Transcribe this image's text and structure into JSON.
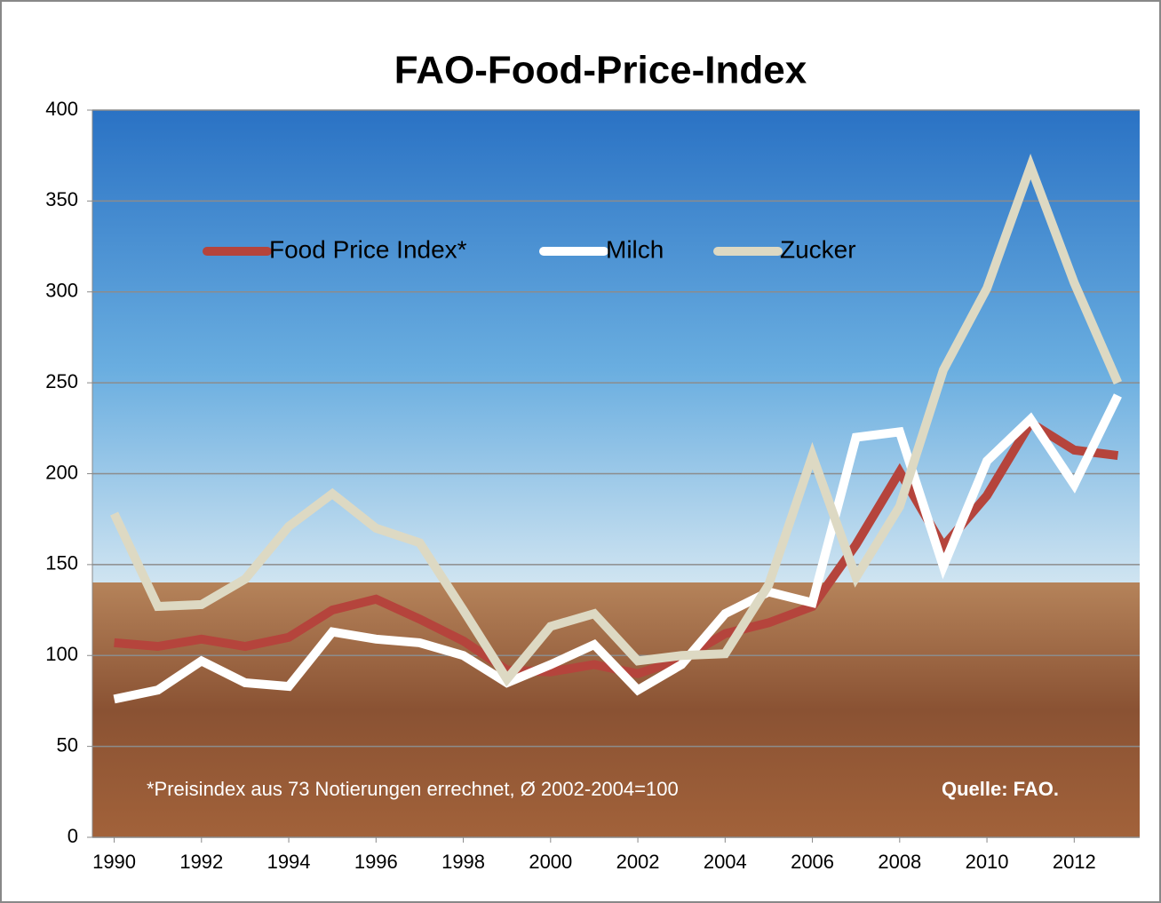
{
  "chart_data": {
    "type": "line",
    "title": "FAO-Food-Price-Index",
    "x": [
      1990,
      1991,
      1992,
      1993,
      1994,
      1995,
      1996,
      1997,
      1998,
      1999,
      2000,
      2001,
      2002,
      2003,
      2004,
      2005,
      2006,
      2007,
      2008,
      2009,
      2010,
      2011,
      2012,
      2013
    ],
    "xlim": [
      1989.5,
      2013.5
    ],
    "xticks": [
      1990,
      1992,
      1994,
      1996,
      1998,
      2000,
      2002,
      2004,
      2006,
      2008,
      2010,
      2012
    ],
    "ylim": [
      0,
      400
    ],
    "yticks": [
      0,
      50,
      100,
      150,
      200,
      250,
      300,
      350,
      400
    ],
    "grid": true,
    "series": [
      {
        "name": "Food Price Index*",
        "color": "#b5443c",
        "values": [
          107,
          105,
          109,
          105,
          110,
          125,
          131,
          120,
          108,
          92,
          91,
          95,
          90,
          98,
          112,
          118,
          127,
          161,
          201,
          160,
          188,
          228,
          213,
          210
        ]
      },
      {
        "name": "Milch",
        "color": "#ffffff",
        "values": [
          76,
          81,
          97,
          85,
          83,
          113,
          109,
          107,
          100,
          85,
          95,
          106,
          81,
          95,
          123,
          135,
          129,
          220,
          223,
          149,
          207,
          230,
          194,
          243
        ]
      },
      {
        "name": "Zucker",
        "color": "#ddd9c3",
        "values": [
          178,
          127,
          128,
          142,
          171,
          189,
          170,
          162,
          125,
          87,
          116,
          123,
          97,
          100,
          101,
          139,
          210,
          143,
          182,
          257,
          302,
          369,
          305,
          250
        ]
      }
    ],
    "footnote": "*Preisindex aus 73 Notierungen errechnet, Ø 2002-2004=100",
    "source": "Quelle: FAO."
  }
}
